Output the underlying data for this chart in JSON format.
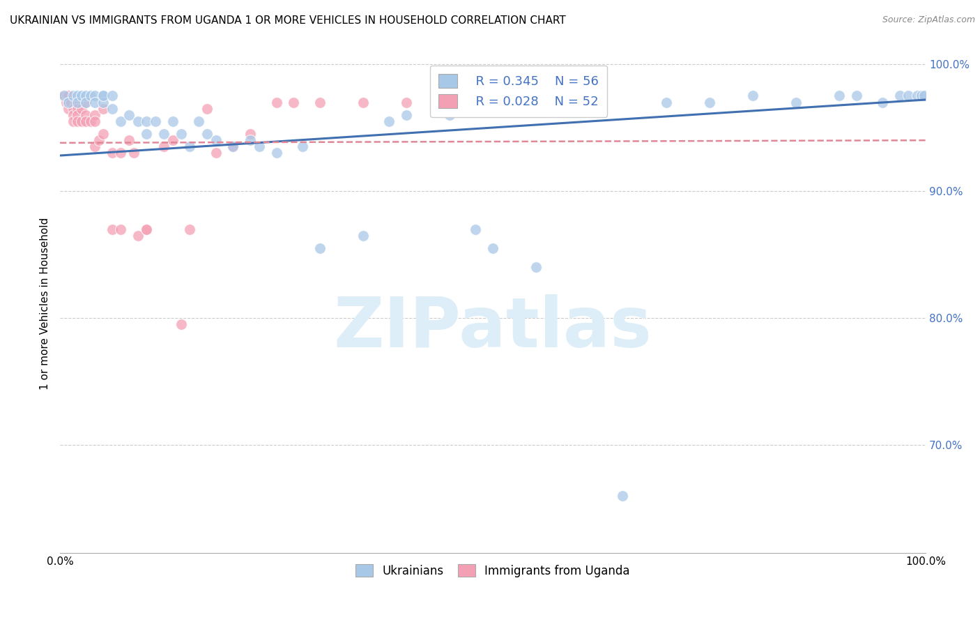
{
  "title": "UKRAINIAN VS IMMIGRANTS FROM UGANDA 1 OR MORE VEHICLES IN HOUSEHOLD CORRELATION CHART",
  "source": "Source: ZipAtlas.com",
  "ylabel": "1 or more Vehicles in Household",
  "xlim": [
    0.0,
    1.0
  ],
  "ylim": [
    0.615,
    1.008
  ],
  "yticks": [
    0.7,
    0.8,
    0.9,
    1.0
  ],
  "ytick_labels": [
    "70.0%",
    "80.0%",
    "90.0%",
    "100.0%"
  ],
  "xticks": [
    0.0,
    0.2,
    0.4,
    0.6,
    0.8,
    1.0
  ],
  "xtick_labels": [
    "0.0%",
    "",
    "",
    "",
    "",
    "100.0%"
  ],
  "legend_r_blue": "R = 0.345",
  "legend_n_blue": "N = 56",
  "legend_r_pink": "R = 0.028",
  "legend_n_pink": "N = 52",
  "blue_color": "#a8c8e8",
  "pink_color": "#f4a0b4",
  "blue_line_color": "#4070b0",
  "pink_line_color": "#e08898",
  "watermark_color": "#ddeef8",
  "blue_x": [
    0.005,
    0.01,
    0.015,
    0.02,
    0.02,
    0.025,
    0.03,
    0.03,
    0.035,
    0.04,
    0.04,
    0.05,
    0.05,
    0.05,
    0.06,
    0.06,
    0.07,
    0.08,
    0.09,
    0.1,
    0.1,
    0.11,
    0.12,
    0.13,
    0.14,
    0.15,
    0.16,
    0.17,
    0.18,
    0.2,
    0.22,
    0.23,
    0.25,
    0.28,
    0.3,
    0.35,
    0.38,
    0.4,
    0.45,
    0.48,
    0.5,
    0.55,
    0.6,
    0.65,
    0.7,
    0.75,
    0.8,
    0.85,
    0.9,
    0.92,
    0.95,
    0.97,
    0.98,
    0.99,
    0.995,
    0.998
  ],
  "blue_y": [
    0.975,
    0.97,
    0.975,
    0.975,
    0.97,
    0.975,
    0.975,
    0.97,
    0.975,
    0.975,
    0.97,
    0.975,
    0.97,
    0.975,
    0.965,
    0.975,
    0.955,
    0.96,
    0.955,
    0.945,
    0.955,
    0.955,
    0.945,
    0.955,
    0.945,
    0.935,
    0.955,
    0.945,
    0.94,
    0.935,
    0.94,
    0.935,
    0.93,
    0.935,
    0.855,
    0.865,
    0.955,
    0.96,
    0.96,
    0.87,
    0.855,
    0.84,
    0.965,
    0.66,
    0.97,
    0.97,
    0.975,
    0.97,
    0.975,
    0.975,
    0.97,
    0.975,
    0.975,
    0.975,
    0.975,
    0.975
  ],
  "pink_x": [
    0.003,
    0.005,
    0.007,
    0.008,
    0.01,
    0.01,
    0.01,
    0.012,
    0.013,
    0.015,
    0.015,
    0.015,
    0.018,
    0.02,
    0.02,
    0.02,
    0.025,
    0.025,
    0.03,
    0.03,
    0.03,
    0.035,
    0.04,
    0.04,
    0.04,
    0.045,
    0.05,
    0.05,
    0.06,
    0.06,
    0.07,
    0.07,
    0.08,
    0.085,
    0.09,
    0.1,
    0.1,
    0.12,
    0.13,
    0.14,
    0.15,
    0.17,
    0.18,
    0.2,
    0.22,
    0.25,
    0.27,
    0.3,
    0.35,
    0.4,
    0.45,
    0.5
  ],
  "pink_y": [
    0.975,
    0.975,
    0.97,
    0.975,
    0.975,
    0.97,
    0.965,
    0.97,
    0.97,
    0.965,
    0.96,
    0.955,
    0.97,
    0.965,
    0.96,
    0.955,
    0.965,
    0.955,
    0.97,
    0.96,
    0.955,
    0.955,
    0.96,
    0.955,
    0.935,
    0.94,
    0.945,
    0.965,
    0.93,
    0.87,
    0.93,
    0.87,
    0.94,
    0.93,
    0.865,
    0.87,
    0.87,
    0.935,
    0.94,
    0.795,
    0.87,
    0.965,
    0.93,
    0.935,
    0.945,
    0.97,
    0.97,
    0.97,
    0.97,
    0.97,
    0.965,
    0.965
  ],
  "blue_trend_x": [
    0.0,
    1.0
  ],
  "blue_trend_y": [
    0.928,
    0.972
  ],
  "pink_trend_x": [
    0.0,
    1.0
  ],
  "pink_trend_y": [
    0.938,
    0.94
  ]
}
